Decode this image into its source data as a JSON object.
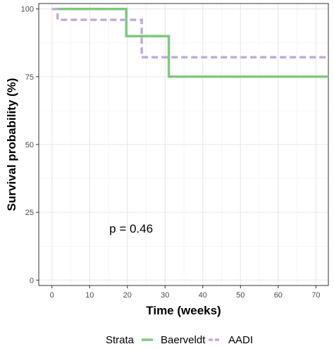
{
  "chart_data": {
    "type": "line",
    "step": true,
    "xlabel": "Time (weeks)",
    "ylabel": "Survival probability (%)",
    "xlim": [
      -3.5,
      73.3
    ],
    "ylim": [
      -2,
      102
    ],
    "x_ticks": [
      0,
      10,
      20,
      30,
      40,
      50,
      60,
      70
    ],
    "y_ticks": [
      0,
      25,
      50,
      75,
      100
    ],
    "grid": true,
    "annotation": {
      "text": "p = 0.46",
      "x": 21,
      "y": 19
    },
    "legend": {
      "title": "Strata",
      "position": "bottom"
    },
    "series": [
      {
        "name": "Baerveldt",
        "color": "#7fc97f",
        "dash": "solid",
        "points": [
          [
            0,
            100
          ],
          [
            19.7,
            100
          ],
          [
            19.7,
            90
          ],
          [
            31,
            90
          ],
          [
            31,
            75
          ],
          [
            73.3,
            75
          ]
        ]
      },
      {
        "name": "AADI",
        "color": "#beaed4",
        "dash": "dashed",
        "points": [
          [
            0,
            100
          ],
          [
            1.5,
            100
          ],
          [
            1.5,
            96
          ],
          [
            23.8,
            96
          ],
          [
            23.8,
            82.2
          ],
          [
            73.3,
            82.2
          ]
        ]
      }
    ]
  }
}
